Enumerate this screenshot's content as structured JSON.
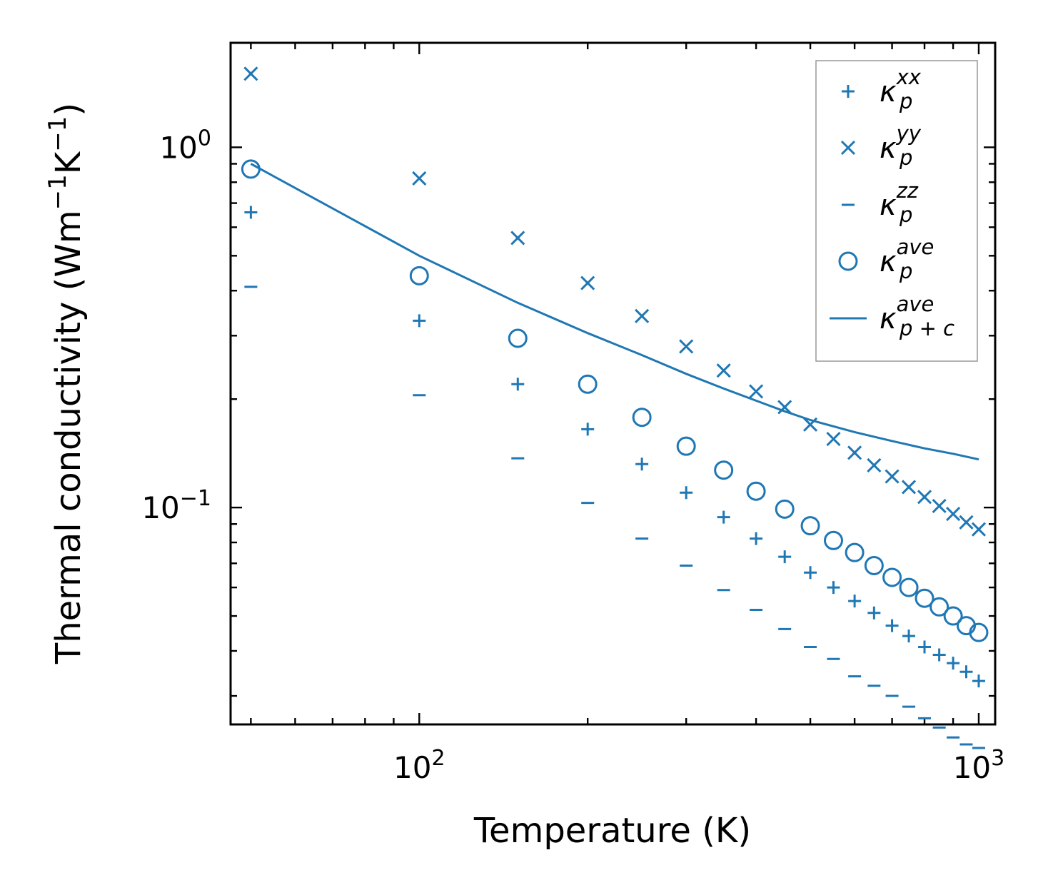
{
  "chart_data": {
    "type": "scatter",
    "xscale": "log",
    "yscale": "log",
    "xlim": [
      46,
      1070
    ],
    "ylim": [
      0.025,
      1.95
    ],
    "xlabel": "Temperature (K)",
    "ylabel": "Thermal conductivity (Wm−1K−1)",
    "ylabel_parts": {
      "prefix": "Thermal conductivity (Wm",
      "sup1": "−1",
      "mid": "K",
      "sup2": "−1",
      "suffix": ")"
    },
    "xticks": [
      {
        "value": 100,
        "base": "10",
        "exp": "2"
      },
      {
        "value": 1000,
        "base": "10",
        "exp": "3"
      }
    ],
    "yticks": [
      {
        "value": 1,
        "base": "10",
        "exp": "0"
      },
      {
        "value": 0.1,
        "base": "10",
        "exp": "−1"
      }
    ],
    "x": [
      50,
      100,
      150,
      200,
      250,
      300,
      350,
      400,
      450,
      500,
      550,
      600,
      650,
      700,
      750,
      800,
      850,
      900,
      950,
      1000
    ],
    "series": [
      {
        "name": "kxx",
        "marker": "plus",
        "legend": {
          "main": "κ",
          "sup": "xx",
          "sub": "p"
        },
        "values": [
          0.66,
          0.33,
          0.22,
          0.165,
          0.132,
          0.11,
          0.094,
          0.082,
          0.073,
          0.066,
          0.06,
          0.055,
          0.051,
          0.047,
          0.044,
          0.041,
          0.039,
          0.037,
          0.035,
          0.033
        ]
      },
      {
        "name": "kyy",
        "marker": "x",
        "legend": {
          "main": "κ",
          "sup": "yy",
          "sub": "p"
        },
        "values": [
          1.6,
          0.82,
          0.56,
          0.42,
          0.34,
          0.28,
          0.24,
          0.21,
          0.19,
          0.17,
          0.155,
          0.142,
          0.131,
          0.122,
          0.114,
          0.107,
          0.101,
          0.096,
          0.091,
          0.087
        ]
      },
      {
        "name": "kzz",
        "marker": "minus",
        "legend": {
          "main": "κ",
          "sup": "zz",
          "sub": "p"
        },
        "values": [
          0.41,
          0.205,
          0.137,
          0.103,
          0.082,
          0.069,
          0.059,
          0.052,
          0.046,
          0.041,
          0.038,
          0.034,
          0.032,
          0.03,
          0.028,
          0.026,
          0.0245,
          0.023,
          0.022,
          0.0215
        ]
      },
      {
        "name": "kave",
        "marker": "circle",
        "legend": {
          "main": "κ",
          "sup": "ave",
          "sub": "p"
        },
        "values": [
          0.87,
          0.44,
          0.295,
          0.22,
          0.178,
          0.148,
          0.127,
          0.111,
          0.099,
          0.089,
          0.081,
          0.075,
          0.069,
          0.064,
          0.06,
          0.056,
          0.053,
          0.05,
          0.047,
          0.045
        ]
      },
      {
        "name": "kave_pc",
        "marker": "line",
        "legend": {
          "main": "κ",
          "sup": "ave",
          "sub": "p + c"
        },
        "x": [
          50,
          100,
          150,
          200,
          250,
          300,
          350,
          400,
          450,
          500,
          600,
          700,
          800,
          900,
          1000
        ],
        "values": [
          0.9,
          0.5,
          0.37,
          0.305,
          0.265,
          0.235,
          0.214,
          0.198,
          0.185,
          0.175,
          0.162,
          0.153,
          0.146,
          0.141,
          0.136
        ]
      }
    ],
    "legend_position": "top-right",
    "grid": false
  }
}
